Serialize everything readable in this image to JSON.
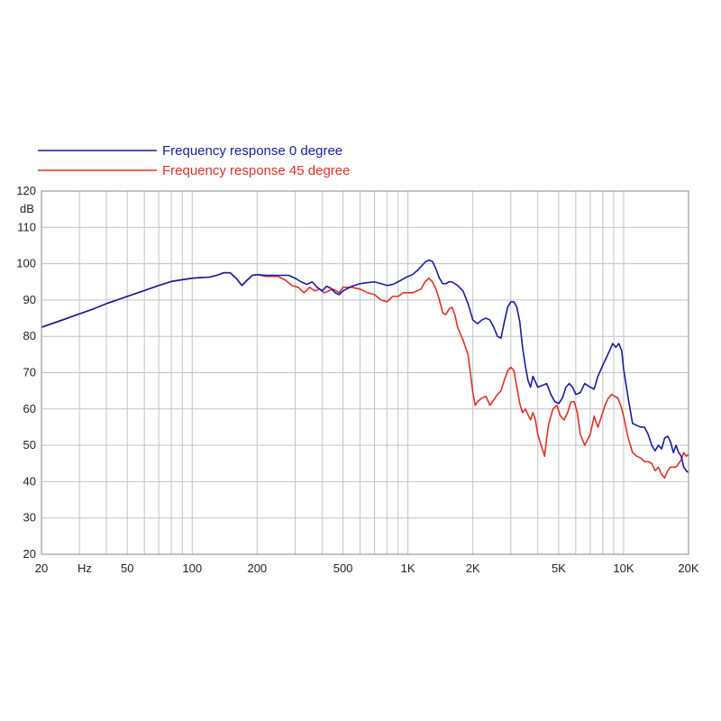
{
  "chart_data": {
    "type": "line",
    "title": "",
    "xlabel": "",
    "ylabel": "",
    "x_unit_label": "Hz",
    "y_unit_label": "dB",
    "x_scale": "log",
    "xlim": [
      20,
      20000
    ],
    "ylim": [
      20,
      120
    ],
    "grid": true,
    "legend_position": "top-left",
    "x_ticks": [
      {
        "value": 20,
        "label": "20"
      },
      {
        "value": 50,
        "label": "50"
      },
      {
        "value": 100,
        "label": "100"
      },
      {
        "value": 200,
        "label": "200"
      },
      {
        "value": 500,
        "label": "500"
      },
      {
        "value": 1000,
        "label": "1K"
      },
      {
        "value": 2000,
        "label": "2K"
      },
      {
        "value": 5000,
        "label": "5K"
      },
      {
        "value": 10000,
        "label": "10K"
      },
      {
        "value": 20000,
        "label": "20K"
      }
    ],
    "y_ticks": [
      20,
      30,
      40,
      50,
      60,
      70,
      80,
      90,
      100,
      110,
      120
    ],
    "series": [
      {
        "name": "Frequency response 0 degree",
        "color": "#1a1aa6",
        "points": [
          [
            20,
            82.5
          ],
          [
            25,
            84.5
          ],
          [
            30,
            86.2
          ],
          [
            35,
            87.6
          ],
          [
            40,
            89
          ],
          [
            50,
            91
          ],
          [
            60,
            92.6
          ],
          [
            70,
            94
          ],
          [
            80,
            95.1
          ],
          [
            90,
            95.6
          ],
          [
            100,
            96
          ],
          [
            110,
            96.2
          ],
          [
            120,
            96.3
          ],
          [
            130,
            96.8
          ],
          [
            140,
            97.5
          ],
          [
            150,
            97.5
          ],
          [
            160,
            96
          ],
          [
            170,
            94
          ],
          [
            180,
            95.5
          ],
          [
            190,
            96.8
          ],
          [
            200,
            97
          ],
          [
            220,
            96.8
          ],
          [
            250,
            96.8
          ],
          [
            280,
            96.8
          ],
          [
            300,
            96
          ],
          [
            320,
            95
          ],
          [
            340,
            94.3
          ],
          [
            360,
            95
          ],
          [
            380,
            93.5
          ],
          [
            400,
            92.5
          ],
          [
            420,
            93.8
          ],
          [
            440,
            93.2
          ],
          [
            460,
            92
          ],
          [
            480,
            91.5
          ],
          [
            500,
            92.5
          ],
          [
            550,
            93.8
          ],
          [
            600,
            94.5
          ],
          [
            650,
            94.8
          ],
          [
            700,
            95
          ],
          [
            750,
            94.5
          ],
          [
            800,
            94
          ],
          [
            850,
            94.3
          ],
          [
            900,
            95
          ],
          [
            950,
            95.8
          ],
          [
            1000,
            96.5
          ],
          [
            1050,
            97
          ],
          [
            1100,
            98
          ],
          [
            1150,
            99.2
          ],
          [
            1200,
            100.4
          ],
          [
            1250,
            101
          ],
          [
            1300,
            100.6
          ],
          [
            1350,
            98.5
          ],
          [
            1400,
            96
          ],
          [
            1450,
            94.5
          ],
          [
            1500,
            94.5
          ],
          [
            1550,
            95
          ],
          [
            1600,
            95
          ],
          [
            1650,
            94.5
          ],
          [
            1700,
            94
          ],
          [
            1800,
            92.5
          ],
          [
            1900,
            89
          ],
          [
            2000,
            84.5
          ],
          [
            2100,
            83.5
          ],
          [
            2200,
            84.5
          ],
          [
            2300,
            85
          ],
          [
            2400,
            84.5
          ],
          [
            2500,
            82.5
          ],
          [
            2600,
            80
          ],
          [
            2700,
            79.5
          ],
          [
            2800,
            84
          ],
          [
            2900,
            88
          ],
          [
            3000,
            89.5
          ],
          [
            3100,
            89.5
          ],
          [
            3200,
            88
          ],
          [
            3300,
            84
          ],
          [
            3400,
            77
          ],
          [
            3500,
            72
          ],
          [
            3600,
            68
          ],
          [
            3700,
            66
          ],
          [
            3800,
            69
          ],
          [
            3900,
            67.5
          ],
          [
            4000,
            66
          ],
          [
            4200,
            66.5
          ],
          [
            4400,
            67
          ],
          [
            4600,
            64
          ],
          [
            4800,
            62
          ],
          [
            5000,
            61.5
          ],
          [
            5200,
            63
          ],
          [
            5400,
            66
          ],
          [
            5600,
            67
          ],
          [
            5800,
            66
          ],
          [
            6000,
            64
          ],
          [
            6300,
            64.5
          ],
          [
            6600,
            67
          ],
          [
            7000,
            66
          ],
          [
            7300,
            65.5
          ],
          [
            7600,
            69
          ],
          [
            8000,
            72
          ],
          [
            8300,
            74
          ],
          [
            8600,
            76
          ],
          [
            8900,
            78
          ],
          [
            9200,
            77
          ],
          [
            9500,
            78
          ],
          [
            9800,
            76
          ],
          [
            10000,
            71
          ],
          [
            10500,
            63
          ],
          [
            11000,
            56
          ],
          [
            11500,
            55.5
          ],
          [
            12000,
            55
          ],
          [
            12500,
            55
          ],
          [
            13000,
            53
          ],
          [
            13500,
            50
          ],
          [
            14000,
            48.5
          ],
          [
            14500,
            50
          ],
          [
            15000,
            49
          ],
          [
            15500,
            52
          ],
          [
            16000,
            52.5
          ],
          [
            16500,
            51
          ],
          [
            17000,
            48
          ],
          [
            17500,
            50
          ],
          [
            18000,
            48
          ],
          [
            18500,
            47
          ],
          [
            19000,
            44
          ],
          [
            19500,
            43
          ],
          [
            20000,
            42.5
          ]
        ]
      },
      {
        "name": "Frequency response 45 degree",
        "color": "#e0302a",
        "points": [
          [
            20,
            82.5
          ],
          [
            25,
            84.5
          ],
          [
            30,
            86.2
          ],
          [
            35,
            87.6
          ],
          [
            40,
            89
          ],
          [
            50,
            91
          ],
          [
            60,
            92.6
          ],
          [
            70,
            94
          ],
          [
            80,
            95.1
          ],
          [
            90,
            95.6
          ],
          [
            100,
            96
          ],
          [
            110,
            96.2
          ],
          [
            120,
            96.3
          ],
          [
            130,
            96.8
          ],
          [
            140,
            97.5
          ],
          [
            150,
            97.5
          ],
          [
            160,
            96
          ],
          [
            170,
            94
          ],
          [
            180,
            95.5
          ],
          [
            190,
            96.8
          ],
          [
            200,
            97
          ],
          [
            220,
            96.5
          ],
          [
            250,
            96.5
          ],
          [
            270,
            95.5
          ],
          [
            290,
            94
          ],
          [
            310,
            93.5
          ],
          [
            330,
            92
          ],
          [
            350,
            93.5
          ],
          [
            370,
            92.5
          ],
          [
            390,
            93
          ],
          [
            410,
            92
          ],
          [
            430,
            92.5
          ],
          [
            450,
            93
          ],
          [
            480,
            92
          ],
          [
            500,
            93.5
          ],
          [
            550,
            93.5
          ],
          [
            600,
            93
          ],
          [
            650,
            92
          ],
          [
            700,
            91.5
          ],
          [
            750,
            90
          ],
          [
            800,
            89.5
          ],
          [
            850,
            91
          ],
          [
            900,
            91
          ],
          [
            950,
            92
          ],
          [
            1000,
            92
          ],
          [
            1050,
            92
          ],
          [
            1100,
            92.5
          ],
          [
            1150,
            93
          ],
          [
            1200,
            95
          ],
          [
            1250,
            96
          ],
          [
            1300,
            95
          ],
          [
            1350,
            93
          ],
          [
            1400,
            90
          ],
          [
            1450,
            86.5
          ],
          [
            1500,
            86
          ],
          [
            1550,
            87.5
          ],
          [
            1600,
            88
          ],
          [
            1650,
            86
          ],
          [
            1700,
            82.5
          ],
          [
            1800,
            79
          ],
          [
            1900,
            75
          ],
          [
            2000,
            64.5
          ],
          [
            2050,
            61
          ],
          [
            2100,
            62
          ],
          [
            2200,
            63
          ],
          [
            2300,
            63.5
          ],
          [
            2400,
            61
          ],
          [
            2500,
            62.5
          ],
          [
            2600,
            64
          ],
          [
            2700,
            65
          ],
          [
            2800,
            68
          ],
          [
            2900,
            70.5
          ],
          [
            3000,
            71.5
          ],
          [
            3100,
            70.5
          ],
          [
            3200,
            66
          ],
          [
            3300,
            61.5
          ],
          [
            3400,
            59
          ],
          [
            3500,
            60
          ],
          [
            3700,
            57
          ],
          [
            3800,
            59
          ],
          [
            3900,
            57
          ],
          [
            4000,
            53
          ],
          [
            4200,
            49
          ],
          [
            4300,
            47
          ],
          [
            4400,
            52
          ],
          [
            4500,
            56
          ],
          [
            4700,
            60
          ],
          [
            4900,
            61
          ],
          [
            5100,
            58
          ],
          [
            5300,
            57
          ],
          [
            5500,
            59
          ],
          [
            5700,
            62
          ],
          [
            5900,
            62
          ],
          [
            6100,
            59
          ],
          [
            6300,
            53
          ],
          [
            6600,
            50
          ],
          [
            7000,
            53
          ],
          [
            7300,
            58
          ],
          [
            7600,
            55
          ],
          [
            7900,
            58
          ],
          [
            8200,
            61
          ],
          [
            8500,
            63
          ],
          [
            8800,
            64
          ],
          [
            9100,
            63.5
          ],
          [
            9400,
            63
          ],
          [
            9700,
            61
          ],
          [
            10000,
            58
          ],
          [
            10500,
            52
          ],
          [
            11000,
            48
          ],
          [
            11500,
            47
          ],
          [
            12000,
            46.5
          ],
          [
            12500,
            45.5
          ],
          [
            13000,
            45.5
          ],
          [
            13500,
            45
          ],
          [
            14000,
            43
          ],
          [
            14500,
            44
          ],
          [
            15000,
            42
          ],
          [
            15500,
            41
          ],
          [
            16000,
            43
          ],
          [
            16500,
            44
          ],
          [
            17000,
            44
          ],
          [
            17500,
            44
          ],
          [
            18000,
            45
          ],
          [
            18500,
            46
          ],
          [
            19000,
            48
          ],
          [
            19500,
            47
          ],
          [
            20000,
            47.5
          ]
        ]
      }
    ]
  }
}
